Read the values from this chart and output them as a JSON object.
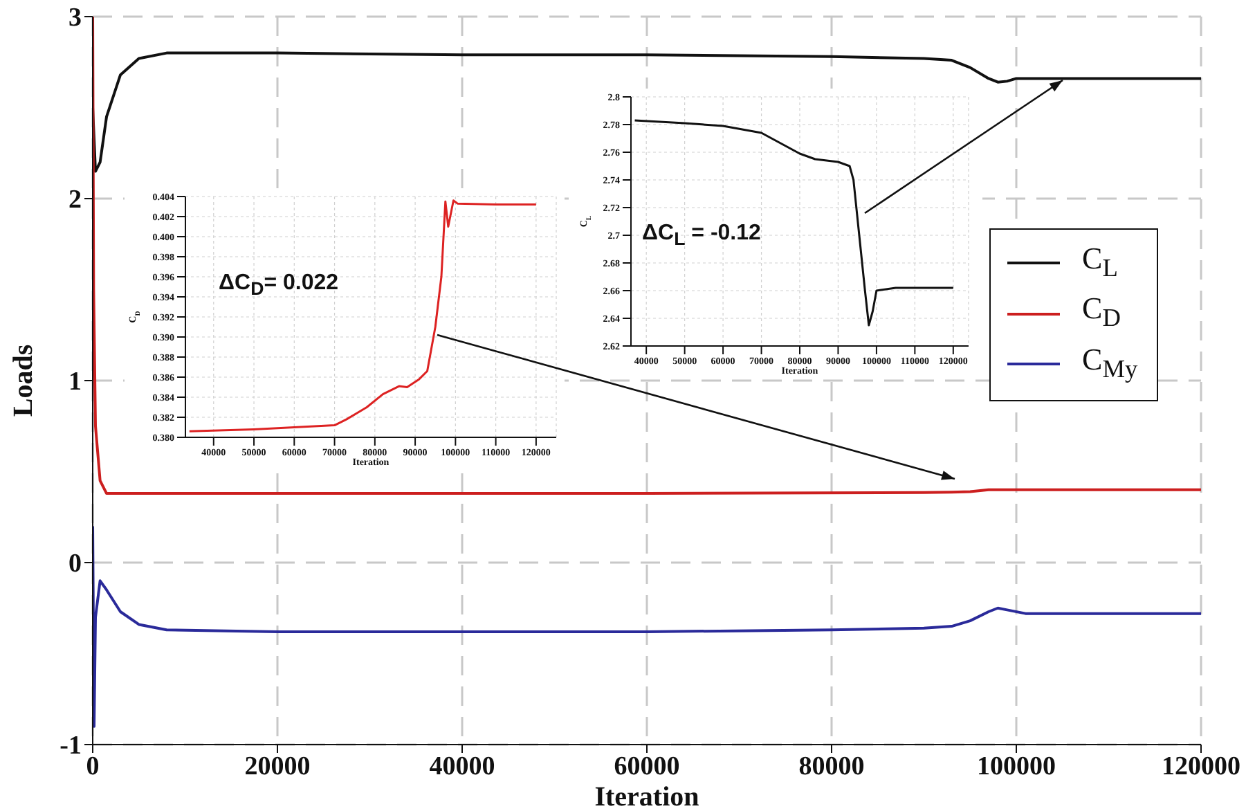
{
  "chart_data": [
    {
      "type": "line",
      "xlabel": "Iteration",
      "ylabel": "Loads",
      "xlim": [
        0,
        120000
      ],
      "xticks": [
        0,
        20000,
        40000,
        60000,
        80000,
        100000,
        120000
      ],
      "ylim": [
        -1,
        3
      ],
      "yticks": [
        -1,
        0,
        1,
        2,
        3
      ],
      "grid": true,
      "legend": "right",
      "line_style": "solid",
      "marker": "none",
      "series": [
        {
          "name": "C$_{L}$",
          "color": "#111111",
          "x": [
            0,
            300,
            800,
            1500,
            3000,
            5000,
            8000,
            20000,
            40000,
            60000,
            80000,
            90000,
            93000,
            95000,
            97000,
            98000,
            99000,
            100000,
            105000,
            120000
          ],
          "values": [
            2.5,
            2.15,
            2.2,
            2.45,
            2.68,
            2.77,
            2.8,
            2.8,
            2.79,
            2.79,
            2.78,
            2.77,
            2.76,
            2.72,
            2.66,
            2.64,
            2.645,
            2.66,
            2.66,
            2.66
          ]
        },
        {
          "name": "C$_{D}$",
          "color": "#cc1f1f",
          "x": [
            0,
            100,
            300,
            800,
            1500,
            3000,
            20000,
            60000,
            90000,
            93000,
            95000,
            97000,
            98000,
            100000,
            120000
          ],
          "values": [
            3,
            1.5,
            0.75,
            0.45,
            0.38,
            0.38,
            0.38,
            0.38,
            0.385,
            0.387,
            0.39,
            0.4,
            0.4,
            0.4,
            0.4
          ]
        },
        {
          "name": "C$_{My}$",
          "color": "#2a2a9a",
          "x": [
            0,
            150,
            300,
            800,
            1500,
            3000,
            5000,
            8000,
            20000,
            40000,
            60000,
            80000,
            90000,
            93000,
            95000,
            97000,
            98000,
            99000,
            101000,
            105000,
            120000
          ],
          "values": [
            0.2,
            -0.9,
            -0.3,
            -0.1,
            -0.15,
            -0.27,
            -0.34,
            -0.37,
            -0.38,
            -0.38,
            -0.38,
            -0.37,
            -0.36,
            -0.35,
            -0.32,
            -0.27,
            -0.25,
            -0.26,
            -0.28,
            -0.28,
            -0.28
          ]
        }
      ]
    },
    {
      "type": "line",
      "xlabel": "Iteration",
      "ylabel": "C$_{D}$",
      "xlim": [
        33000,
        125000
      ],
      "xticks": [
        40000,
        50000,
        60000,
        70000,
        80000,
        90000,
        100000,
        110000,
        120000
      ],
      "ylim": [
        0.38,
        0.404
      ],
      "yticks": [
        {
          "value": 0.38,
          "label": "0.380"
        },
        {
          "value": 0.382,
          "label": "0.382"
        },
        {
          "value": 0.384,
          "label": "0.384"
        },
        {
          "value": 0.386,
          "label": "0.386"
        },
        {
          "value": 0.388,
          "label": "0.388"
        },
        {
          "value": 0.39,
          "label": "0.390"
        },
        {
          "value": 0.392,
          "label": "0.392"
        },
        {
          "value": 0.394,
          "label": "0.394"
        },
        {
          "value": 0.396,
          "label": "0.396"
        },
        {
          "value": 0.398,
          "label": "0.398"
        },
        {
          "value": 0.4,
          "label": "0.400"
        },
        {
          "value": 0.402,
          "label": "0.402"
        },
        {
          "value": 0.404,
          "label": "0.404"
        }
      ],
      "grid": true,
      "line_style": "solid",
      "marker": "none",
      "annotations": [
        "ΔC$_{D}$= 0.022"
      ],
      "series": [
        {
          "color": "#dd2222",
          "x": [
            34000,
            50000,
            60000,
            70000,
            73000,
            78000,
            82000,
            86000,
            88000,
            91000,
            93000,
            95000,
            96500,
            97500,
            98200,
            99500,
            100500,
            110000,
            120000
          ],
          "values": [
            0.3806,
            0.3808,
            0.381,
            0.3812,
            0.3818,
            0.383,
            0.3843,
            0.3851,
            0.385,
            0.3858,
            0.3866,
            0.391,
            0.396,
            0.4035,
            0.401,
            0.4036,
            0.4033,
            0.4032,
            0.4032
          ]
        }
      ]
    },
    {
      "type": "line",
      "xlabel": "Iteration",
      "ylabel": "C$_{L}$",
      "xlim": [
        36000,
        124000
      ],
      "xticks": [
        40000,
        50000,
        60000,
        70000,
        80000,
        90000,
        100000,
        110000,
        120000
      ],
      "ylim": [
        2.62,
        2.8
      ],
      "yticks": [
        2.62,
        2.64,
        2.66,
        2.68,
        2.7,
        2.72,
        2.74,
        2.76,
        2.78,
        2.8
      ],
      "grid": true,
      "line_style": "solid",
      "marker": "none",
      "annotations": [
        "ΔC$_{L}$ = -0.12"
      ],
      "series": [
        {
          "color": "#111111",
          "x": [
            37000,
            50000,
            60000,
            70000,
            76000,
            80000,
            84000,
            90000,
            93000,
            94000,
            95500,
            97000,
            98000,
            99000,
            100000,
            105000,
            120000
          ],
          "values": [
            2.783,
            2.781,
            2.779,
            2.774,
            2.765,
            2.759,
            2.755,
            2.753,
            2.75,
            2.74,
            2.7,
            2.66,
            2.635,
            2.645,
            2.66,
            2.662,
            2.662
          ]
        }
      ]
    }
  ]
}
